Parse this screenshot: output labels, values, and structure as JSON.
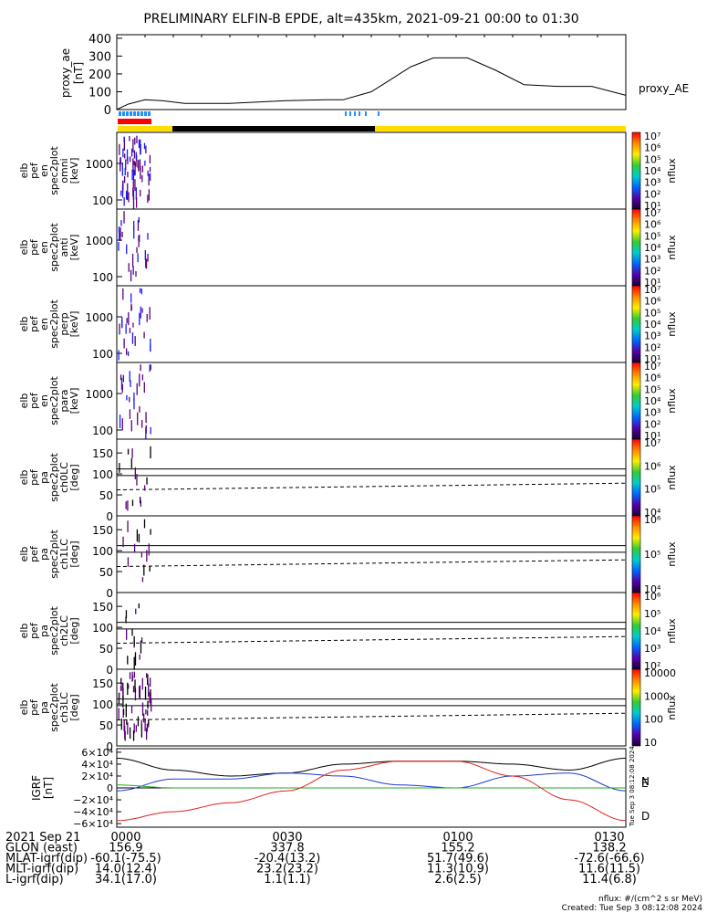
{
  "title": "PRELIMINARY ELFIN-B EPDE, alt=435km, 2021-09-21 00:00 to 01:30",
  "colors": {
    "axis": "#000000",
    "bar_blue": "#1e90ff",
    "bar_red": "#ff0000",
    "bar_yellow": "#ffdd00",
    "bar_black": "#000000",
    "spec_purple": "#5a007a",
    "spec_blue": "#1a1aff",
    "grf_black": "#000000",
    "grf_blue": "#1a3ad4",
    "grf_green": "#22aa22",
    "grf_red": "#dd2222"
  },
  "proxy_ae": {
    "ylabel": "proxy_ae\n[nT]",
    "legend": "proxy_AE",
    "yticks": [
      "400",
      "300",
      "200",
      "100",
      "0"
    ]
  },
  "spec_panels": [
    {
      "ylabel": [
        "elb",
        "pef",
        "en",
        "spec2plot",
        "omni",
        "[keV]"
      ],
      "yticks": [
        "1000",
        "100"
      ],
      "cb_label": "nflux"
    },
    {
      "ylabel": [
        "elb",
        "pef",
        "en",
        "spec2plot",
        "anti",
        "[keV]"
      ],
      "yticks": [
        "1000",
        "100"
      ],
      "cb_label": "nflux"
    },
    {
      "ylabel": [
        "elb",
        "pef",
        "en",
        "spec2plot",
        "perp",
        "[keV]"
      ],
      "yticks": [
        "1000",
        "100"
      ],
      "cb_label": "nflux"
    },
    {
      "ylabel": [
        "elb",
        "pef",
        "en",
        "spec2plot",
        "para",
        "[keV]"
      ],
      "yticks": [
        "1000",
        "100"
      ],
      "cb_label": "nflux"
    }
  ],
  "pa_panels": [
    {
      "ylabel": [
        "elb",
        "pef",
        "pa",
        "spec2plot",
        "ch0LC",
        "[deg]"
      ],
      "yticks": [
        "150",
        "100",
        "50",
        "0"
      ],
      "cb_label": "nflux"
    },
    {
      "ylabel": [
        "elb",
        "pef",
        "pa",
        "spec2plot",
        "ch1LC",
        "[deg]"
      ],
      "yticks": [
        "150",
        "100",
        "50",
        "0"
      ],
      "cb_label": "nflux"
    },
    {
      "ylabel": [
        "elb",
        "pef",
        "pa",
        "spec2plot",
        "ch2LC",
        "[deg]"
      ],
      "yticks": [
        "150",
        "100",
        "50",
        "0"
      ],
      "cb_label": "nflux"
    },
    {
      "ylabel": [
        "elb",
        "pef",
        "pa",
        "spec2plot",
        "ch3LC",
        "[deg]"
      ],
      "yticks": [
        "150",
        "100",
        "50",
        "0"
      ],
      "cb_label": "nflux"
    }
  ],
  "colorbars": [
    {
      "ticks": [
        "10⁷",
        "10⁶",
        "10⁵",
        "10⁴",
        "10³",
        "10²",
        "10¹"
      ]
    },
    {
      "ticks": [
        "10⁷",
        "10⁶",
        "10⁵",
        "10⁴",
        "10³",
        "10²",
        "10¹"
      ]
    },
    {
      "ticks": [
        "10⁷",
        "10⁶",
        "10⁵",
        "10⁴",
        "10³",
        "10²",
        "10¹"
      ]
    },
    {
      "ticks": [
        "10⁷",
        "10⁶",
        "10⁵",
        "10⁴",
        "10³",
        "10²",
        "10¹"
      ]
    },
    {
      "ticks": [
        "10⁷",
        "10⁶",
        "10⁵",
        "10⁴"
      ]
    },
    {
      "ticks": [
        "10⁶",
        "10⁵",
        "10⁴"
      ]
    },
    {
      "ticks": [
        "10⁶",
        "10⁵",
        "10⁴",
        "10³",
        "10²"
      ]
    },
    {
      "ticks": [
        "10000",
        "1000",
        "100",
        "10"
      ]
    }
  ],
  "grf": {
    "ylabel": "IGRF\n[nT]",
    "yticks": [
      "6×10⁴",
      "4×10⁴",
      "2×10⁴",
      "0",
      "−2×10⁴",
      "−4×10⁴",
      "−6×10⁴"
    ],
    "legend": [
      "N",
      "E",
      "D"
    ],
    "side_note": "Tue Sep 3 08:12:08 2024"
  },
  "chart_data": {
    "type": "line",
    "x_ticks": [
      "0000",
      "0030",
      "0100",
      "0130"
    ],
    "proxy_ae_values": {
      "x_min": [
        0,
        2,
        5,
        8,
        12,
        20,
        30,
        37,
        40,
        45,
        48,
        52,
        56,
        62,
        67,
        72,
        78,
        84,
        90
      ],
      "nT": [
        0,
        30,
        55,
        50,
        35,
        35,
        50,
        55,
        55,
        100,
        160,
        240,
        290,
        290,
        220,
        140,
        130,
        130,
        80
      ]
    },
    "igrf": {
      "x_min": [
        0,
        10,
        20,
        30,
        40,
        50,
        60,
        70,
        80,
        90
      ],
      "black": [
        50000,
        30000,
        20000,
        25000,
        40000,
        45000,
        45000,
        40000,
        30000,
        50000
      ],
      "blue": [
        -5000,
        15000,
        15000,
        25000,
        20000,
        5000,
        0,
        20000,
        25000,
        -5000
      ],
      "green": [
        5000,
        0,
        0,
        0,
        0,
        0,
        0,
        0,
        0,
        0
      ],
      "red": [
        -55000,
        -40000,
        -25000,
        -5000,
        30000,
        45000,
        45000,
        20000,
        -20000,
        -55000
      ]
    }
  },
  "footer": {
    "rows": [
      {
        "label": "2021 Sep 21",
        "values": [
          "0000",
          "0030",
          "0100",
          "0130"
        ]
      },
      {
        "label": "GLON (east)",
        "values": [
          "156.9",
          "337.8",
          "155.2",
          "138.2"
        ]
      },
      {
        "label": "MLAT-igrf(dip)",
        "values": [
          "-60.1(-75.5)",
          "-20.4(13.2)",
          "51.7(49.6)",
          "-72.6(-66.6)"
        ]
      },
      {
        "label": "MLT-igrf(dip)",
        "values": [
          "14.0(12.4)",
          "23.2(23.2)",
          "11.3(10.9)",
          "11.6(11.5)"
        ]
      },
      {
        "label": "L-igrf(dip)",
        "values": [
          "34.1(17.0)",
          "1.1(1.1)",
          "2.6(2.5)",
          "11.4(6.8)"
        ]
      }
    ],
    "units_note": "nflux: #/(cm^2 s sr MeV)",
    "created": "Created: Tue Sep  3 08:12:08 2024"
  }
}
